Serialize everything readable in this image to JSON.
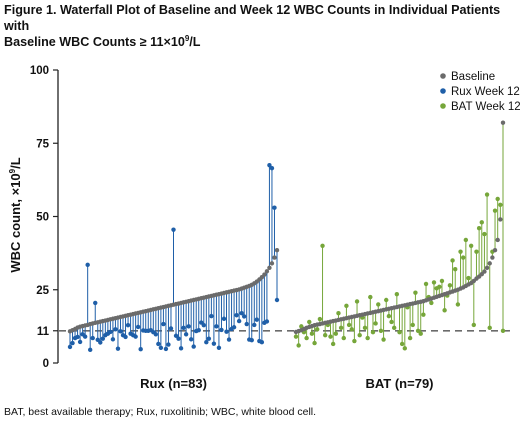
{
  "title_line1": "Figure 1. Waterfall Plot of Baseline and Week 12 WBC Counts in Individual Patients with",
  "title_line2_prefix": "Baseline WBC Counts ≥ 11×10",
  "title_line2_sup": "9",
  "title_line2_suffix": "/L",
  "footnote": "BAT, best available therapy; Rux, ruxolitinib; WBC, white blood cell.",
  "colors": {
    "baseline": "#6b6b6b",
    "rux": "#1f5fa8",
    "bat": "#76a63a",
    "axis": "#222222",
    "threshold": "#6b6b6b"
  },
  "chart_data": {
    "type": "scatter",
    "ylabel_prefix": "WBC count, ×10",
    "ylabel_sup": "9",
    "ylabel_suffix": "/L",
    "ylim": [
      0,
      100
    ],
    "yticks": [
      0,
      11,
      25,
      50,
      75,
      100
    ],
    "threshold": 11,
    "grid": false,
    "legend_placement": "top-right",
    "legend": [
      "Baseline",
      "Rux Week 12",
      "BAT Week 12"
    ],
    "groups": [
      {
        "label": "Rux (n=83)",
        "baseline": [
          10.8,
          11.2,
          11.6,
          12.1,
          12.4,
          12.6,
          12.8,
          13.0,
          13.3,
          13.5,
          13.7,
          13.9,
          14.1,
          14.3,
          14.5,
          14.7,
          14.9,
          15.1,
          15.3,
          15.5,
          15.7,
          15.9,
          16.1,
          16.3,
          16.5,
          16.7,
          16.9,
          17.1,
          17.3,
          17.5,
          17.7,
          17.9,
          18.1,
          18.3,
          18.5,
          18.7,
          18.9,
          19.1,
          19.3,
          19.5,
          19.7,
          19.9,
          20.1,
          20.3,
          20.5,
          20.7,
          20.9,
          21.1,
          21.3,
          21.5,
          21.7,
          21.9,
          22.1,
          22.3,
          22.5,
          22.7,
          22.9,
          23.1,
          23.3,
          23.5,
          23.7,
          23.9,
          24.1,
          24.3,
          24.5,
          24.7,
          24.9,
          25.1,
          25.4,
          25.7,
          26.0,
          26.3,
          26.7,
          27.2,
          27.8,
          28.5,
          29.3,
          30.2,
          31.3,
          32.5,
          34.0,
          36.0,
          38.5
        ],
        "week12": [
          5.5,
          6.8,
          8.5,
          8.9,
          7.2,
          9.8,
          9.0,
          33.5,
          4.5,
          8.5,
          20.5,
          7.9,
          7.0,
          8.3,
          9.5,
          10.0,
          10.6,
          8.1,
          11.5,
          4.9,
          10.8,
          9.5,
          8.9,
          12.9,
          10.0,
          9.5,
          9.0,
          12.3,
          4.7,
          11.1,
          11.0,
          11.0,
          11.2,
          10.5,
          9.8,
          6.5,
          5.2,
          13.3,
          4.8,
          6.3,
          11.8,
          45.5,
          9.3,
          8.3,
          5.0,
          12.0,
          9.8,
          12.5,
          8.1,
          5.6,
          10.9,
          11.2,
          13.8,
          12.9,
          7.1,
          8.3,
          16.0,
          6.6,
          12.5,
          5.2,
          11.3,
          15.1,
          10.7,
          8.0,
          11.6,
          12.2,
          16.3,
          14.3,
          17.0,
          15.9,
          13.3,
          8.0,
          7.8,
          13.0,
          14.8,
          7.5,
          7.1,
          13.7,
          14.2,
          67.5,
          66.5,
          53.0,
          21.5
        ]
      },
      {
        "label": "BAT (n=79)",
        "baseline": [
          10.6,
          10.9,
          11.2,
          11.6,
          12.0,
          12.3,
          12.6,
          12.9,
          13.1,
          13.3,
          13.5,
          13.7,
          13.9,
          14.1,
          14.3,
          14.5,
          14.7,
          14.9,
          15.1,
          15.3,
          15.5,
          15.7,
          15.9,
          16.1,
          16.3,
          16.5,
          16.7,
          16.9,
          17.1,
          17.3,
          17.5,
          17.7,
          17.9,
          18.1,
          18.3,
          18.5,
          18.7,
          18.9,
          19.1,
          19.3,
          19.5,
          19.7,
          19.9,
          20.1,
          20.3,
          20.5,
          20.7,
          20.9,
          21.1,
          21.4,
          21.7,
          22.0,
          22.3,
          22.6,
          22.9,
          23.2,
          23.5,
          23.8,
          24.1,
          24.4,
          24.7,
          25.0,
          25.4,
          25.8,
          26.3,
          26.8,
          27.3,
          28.0,
          28.8,
          29.5,
          30.3,
          31.2,
          32.5,
          34.0,
          36.0,
          38.5,
          42.0,
          49.0,
          82.0
        ],
        "week12": [
          9.0,
          6.0,
          12.5,
          10.5,
          8.5,
          14.0,
          10.0,
          6.8,
          11.5,
          15.0,
          40.0,
          9.5,
          13.0,
          9.0,
          6.5,
          10.0,
          17.0,
          12.0,
          8.5,
          19.5,
          13.0,
          11.5,
          7.5,
          21.0,
          9.5,
          15.5,
          12.0,
          8.5,
          22.5,
          10.5,
          13.5,
          20.0,
          11.0,
          8.0,
          21.5,
          16.0,
          14.0,
          12.0,
          23.5,
          10.5,
          6.5,
          5.0,
          19.0,
          8.5,
          13.0,
          24.0,
          11.0,
          10.0,
          16.5,
          27.0,
          22.5,
          20.5,
          27.5,
          25.5,
          26.0,
          28.0,
          18.0,
          23.0,
          26.5,
          35.0,
          32.0,
          20.0,
          38.0,
          36.0,
          42.0,
          29.0,
          40.0,
          13.0,
          38.0,
          46.0,
          48.0,
          44.0,
          57.5,
          12.0,
          38.0,
          52.0,
          56.0,
          54.0,
          11.0
        ]
      }
    ]
  }
}
